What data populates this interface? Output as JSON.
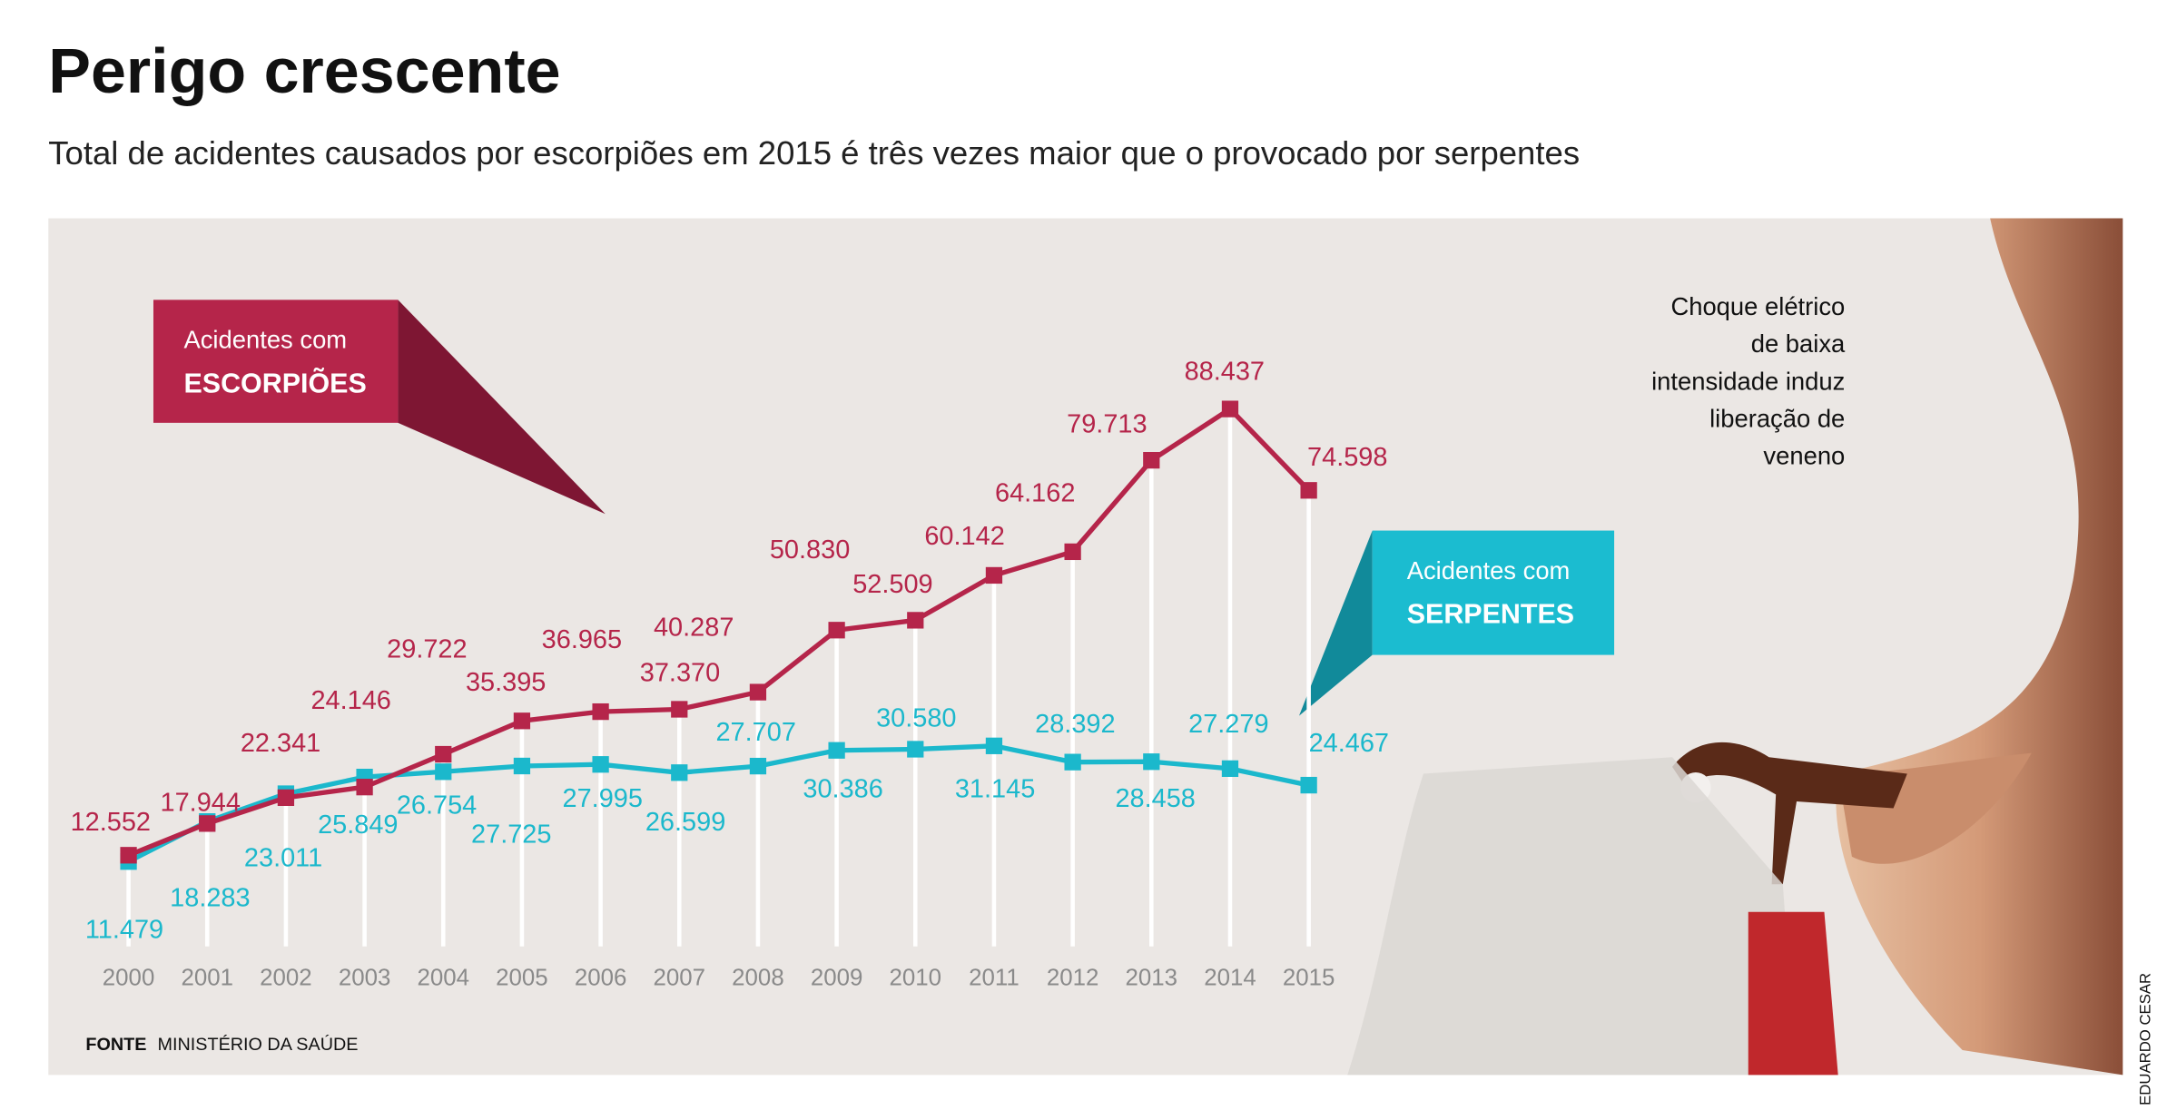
{
  "chart_data": {
    "type": "line",
    "title": "Perigo crescente",
    "subtitle": "Total de acidentes causados por escorpiões em 2015 é três vezes maior que o provocado por serpentes",
    "series_label_prefix": "Acidentes com",
    "categories": [
      "2000",
      "2001",
      "2002",
      "2003",
      "2004",
      "2005",
      "2006",
      "2007",
      "2008",
      "2009",
      "2010",
      "2011",
      "2012",
      "2013",
      "2014",
      "2015"
    ],
    "series": [
      {
        "name": "ESCORPIÕES",
        "color": "#b5254a",
        "values": [
          12552,
          17944,
          22341,
          24146,
          29722,
          35395,
          36965,
          37370,
          40287,
          50830,
          52509,
          60142,
          64162,
          79713,
          88437,
          74598
        ],
        "value_labels": [
          "12.552",
          "17.944",
          "22.341",
          "24.146",
          "29.722",
          "35.395",
          "36.965",
          "37.370",
          "40.287",
          "50.830",
          "52.509",
          "60.142",
          "64.162",
          "79.713",
          "88.437",
          "74.598"
        ]
      },
      {
        "name": "SERPENTES",
        "color": "#1bb8cc",
        "values": [
          11479,
          18283,
          23011,
          25849,
          26754,
          27725,
          27995,
          26599,
          27707,
          30386,
          30580,
          31145,
          28392,
          28458,
          27279,
          24467
        ],
        "value_labels": [
          "11.479",
          "18.283",
          "23.011",
          "25.849",
          "26.754",
          "27.725",
          "27.995",
          "26.599",
          "27.707",
          "30.386",
          "30.580",
          "31.145",
          "28.392",
          "28.458",
          "27.279",
          "24.467"
        ]
      }
    ],
    "grid": true,
    "source_label": "FONTE",
    "source": "MINISTÉRIO DA SAÚDE",
    "photo_caption": [
      "Choque elétrico",
      "de baixa",
      "intensidade induz",
      "liberação de",
      "veneno"
    ],
    "credit": "EDUARDO CESAR"
  }
}
